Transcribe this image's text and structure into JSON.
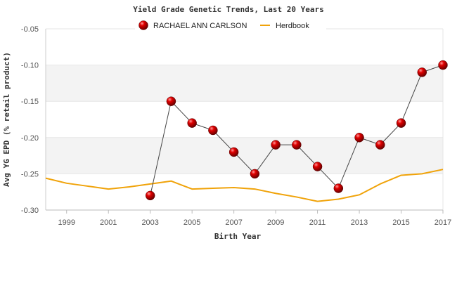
{
  "chart_data": {
    "type": "line",
    "title": "Yield Grade Genetic Trends, Last 20 Years",
    "xlabel": "Birth Year",
    "ylabel": "Avg YG EPD (% retail product)",
    "xlim": [
      1998,
      2017
    ],
    "ylim": [
      -0.3,
      -0.05
    ],
    "x_ticks": [
      "1999",
      "2001",
      "2003",
      "2005",
      "2007",
      "2009",
      "2011",
      "2013",
      "2015",
      "2017"
    ],
    "y_ticks": [
      "-0.05",
      "-0.10",
      "-0.15",
      "-0.20",
      "-0.25",
      "-0.30"
    ],
    "grid": "alternating horizontal bands",
    "legend": "top",
    "series": [
      {
        "name": "RACHAEL ANN CARLSON",
        "color": "#cc0000",
        "marker": "sphere",
        "x": [
          2003,
          2004,
          2005,
          2006,
          2007,
          2008,
          2009,
          2010,
          2011,
          2012,
          2013,
          2014,
          2015,
          2016,
          2017
        ],
        "y": [
          -0.28,
          -0.15,
          -0.18,
          -0.19,
          -0.22,
          -0.25,
          -0.21,
          -0.21,
          -0.24,
          -0.27,
          -0.2,
          -0.21,
          -0.18,
          -0.11,
          -0.1
        ]
      },
      {
        "name": "Herdbook",
        "color": "#f0a30a",
        "marker": "none",
        "x": [
          1998,
          1999,
          2000,
          2001,
          2002,
          2003,
          2004,
          2005,
          2006,
          2007,
          2008,
          2009,
          2010,
          2011,
          2012,
          2013,
          2014,
          2015,
          2016,
          2017
        ],
        "y": [
          -0.256,
          -0.263,
          -0.267,
          -0.271,
          -0.268,
          -0.264,
          -0.26,
          -0.271,
          -0.27,
          -0.269,
          -0.271,
          -0.277,
          -0.282,
          -0.288,
          -0.285,
          -0.279,
          -0.264,
          -0.252,
          -0.25,
          -0.244
        ]
      }
    ]
  }
}
